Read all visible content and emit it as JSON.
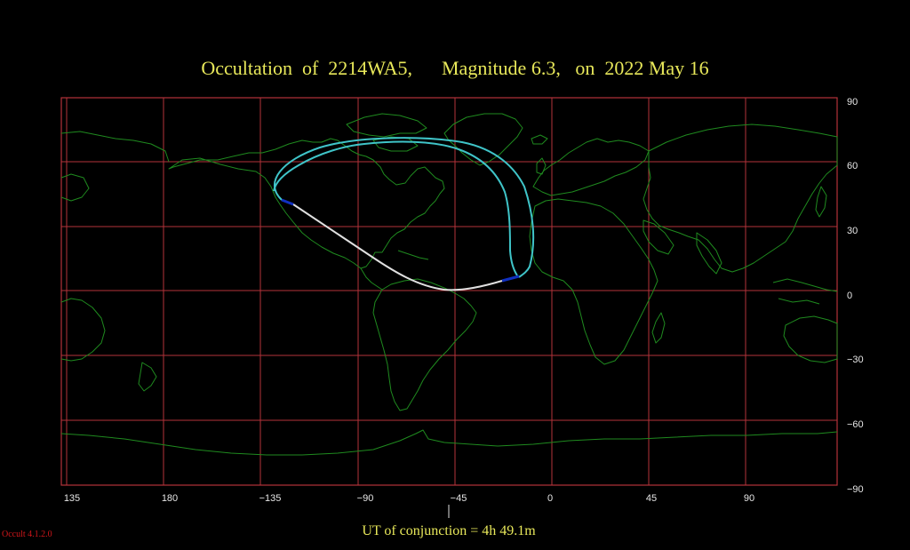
{
  "title": {
    "prefix": "Occultation  of  2214WA5,",
    "magnitude": "Magnitude 6.3,",
    "date": "on  2022 May 16"
  },
  "footer": "UT of conjunction =  4h 49.1m",
  "version": "Occult 4.1.2.0",
  "map": {
    "lon_labels": [
      "135",
      "180",
      "−135",
      "−90",
      "−45",
      "0",
      "45",
      "90"
    ],
    "lat_labels": [
      "90",
      "60",
      "30",
      "0",
      "−30",
      "−60",
      "−90"
    ],
    "colors": {
      "grid": "#b3333a",
      "coast": "#1f8a1f",
      "path_day": "#e0e0e0",
      "path_twilight": "#1030c0",
      "path_limit": "#3fc4c8",
      "text": "#e8e85a"
    }
  }
}
